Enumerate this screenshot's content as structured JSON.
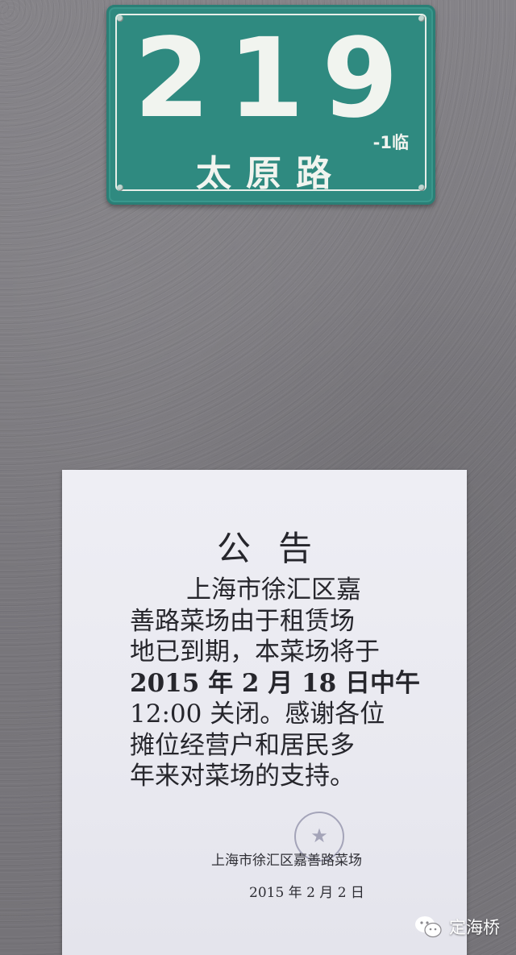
{
  "plate": {
    "number": "219",
    "suffix": "-1临",
    "street": "太原路",
    "colors": {
      "background": "#2f8a80",
      "text": "#f1f4ef"
    }
  },
  "notice": {
    "title": "公告",
    "lines": [
      "上海市徐汇区嘉",
      "善路菜场由于租赁场",
      "地已到期，本菜场将于",
      "2015 年 2 月 18 日中午",
      "12:00 关闭。感谢各位",
      "摊位经营户和居民多",
      "年来对菜场的支持。"
    ],
    "signature": "上海市徐汇区嘉善路菜场",
    "date": "2015 年 2 月 2 日",
    "stamp": "official-seal-stamp"
  },
  "watermark": {
    "icon": "wechat-icon",
    "text": "定海桥"
  }
}
